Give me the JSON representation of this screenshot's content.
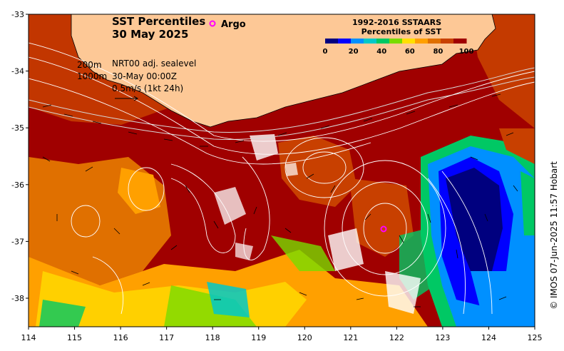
{
  "map": {
    "title_line1": "SST Percentiles",
    "title_line2": "30 May 2025",
    "legend_argo": "Argo",
    "colorbar": {
      "title_line1": "1992-2016 SSTAARS",
      "title_line2": "Percentiles of SST",
      "ticks": [
        "0",
        "20",
        "40",
        "60",
        "80",
        "100"
      ],
      "colors": [
        "#00007f",
        "#0000ff",
        "#0090ff",
        "#00c8c8",
        "#00c864",
        "#78dc00",
        "#ffe000",
        "#ffa000",
        "#e07000",
        "#c84000",
        "#a00000"
      ]
    },
    "annotation": {
      "depth1": "200m",
      "depth2": "1000m",
      "product": "NRT00 adj. sealevel",
      "datetime": "30-May 00:00Z",
      "scale": "0.5m/s (1kt 24h)"
    },
    "credit": "© IMOS 07-Jun-2025 11:57 Hobart",
    "x_ticks": [
      "114",
      "115",
      "116",
      "117",
      "118",
      "119",
      "120",
      "121",
      "122",
      "123",
      "124",
      "125"
    ],
    "y_ticks": [
      "-33",
      "-34",
      "-35",
      "-36",
      "-37",
      "-38"
    ],
    "land_color": "#fdc896",
    "argo_color": "#ff00ff"
  }
}
